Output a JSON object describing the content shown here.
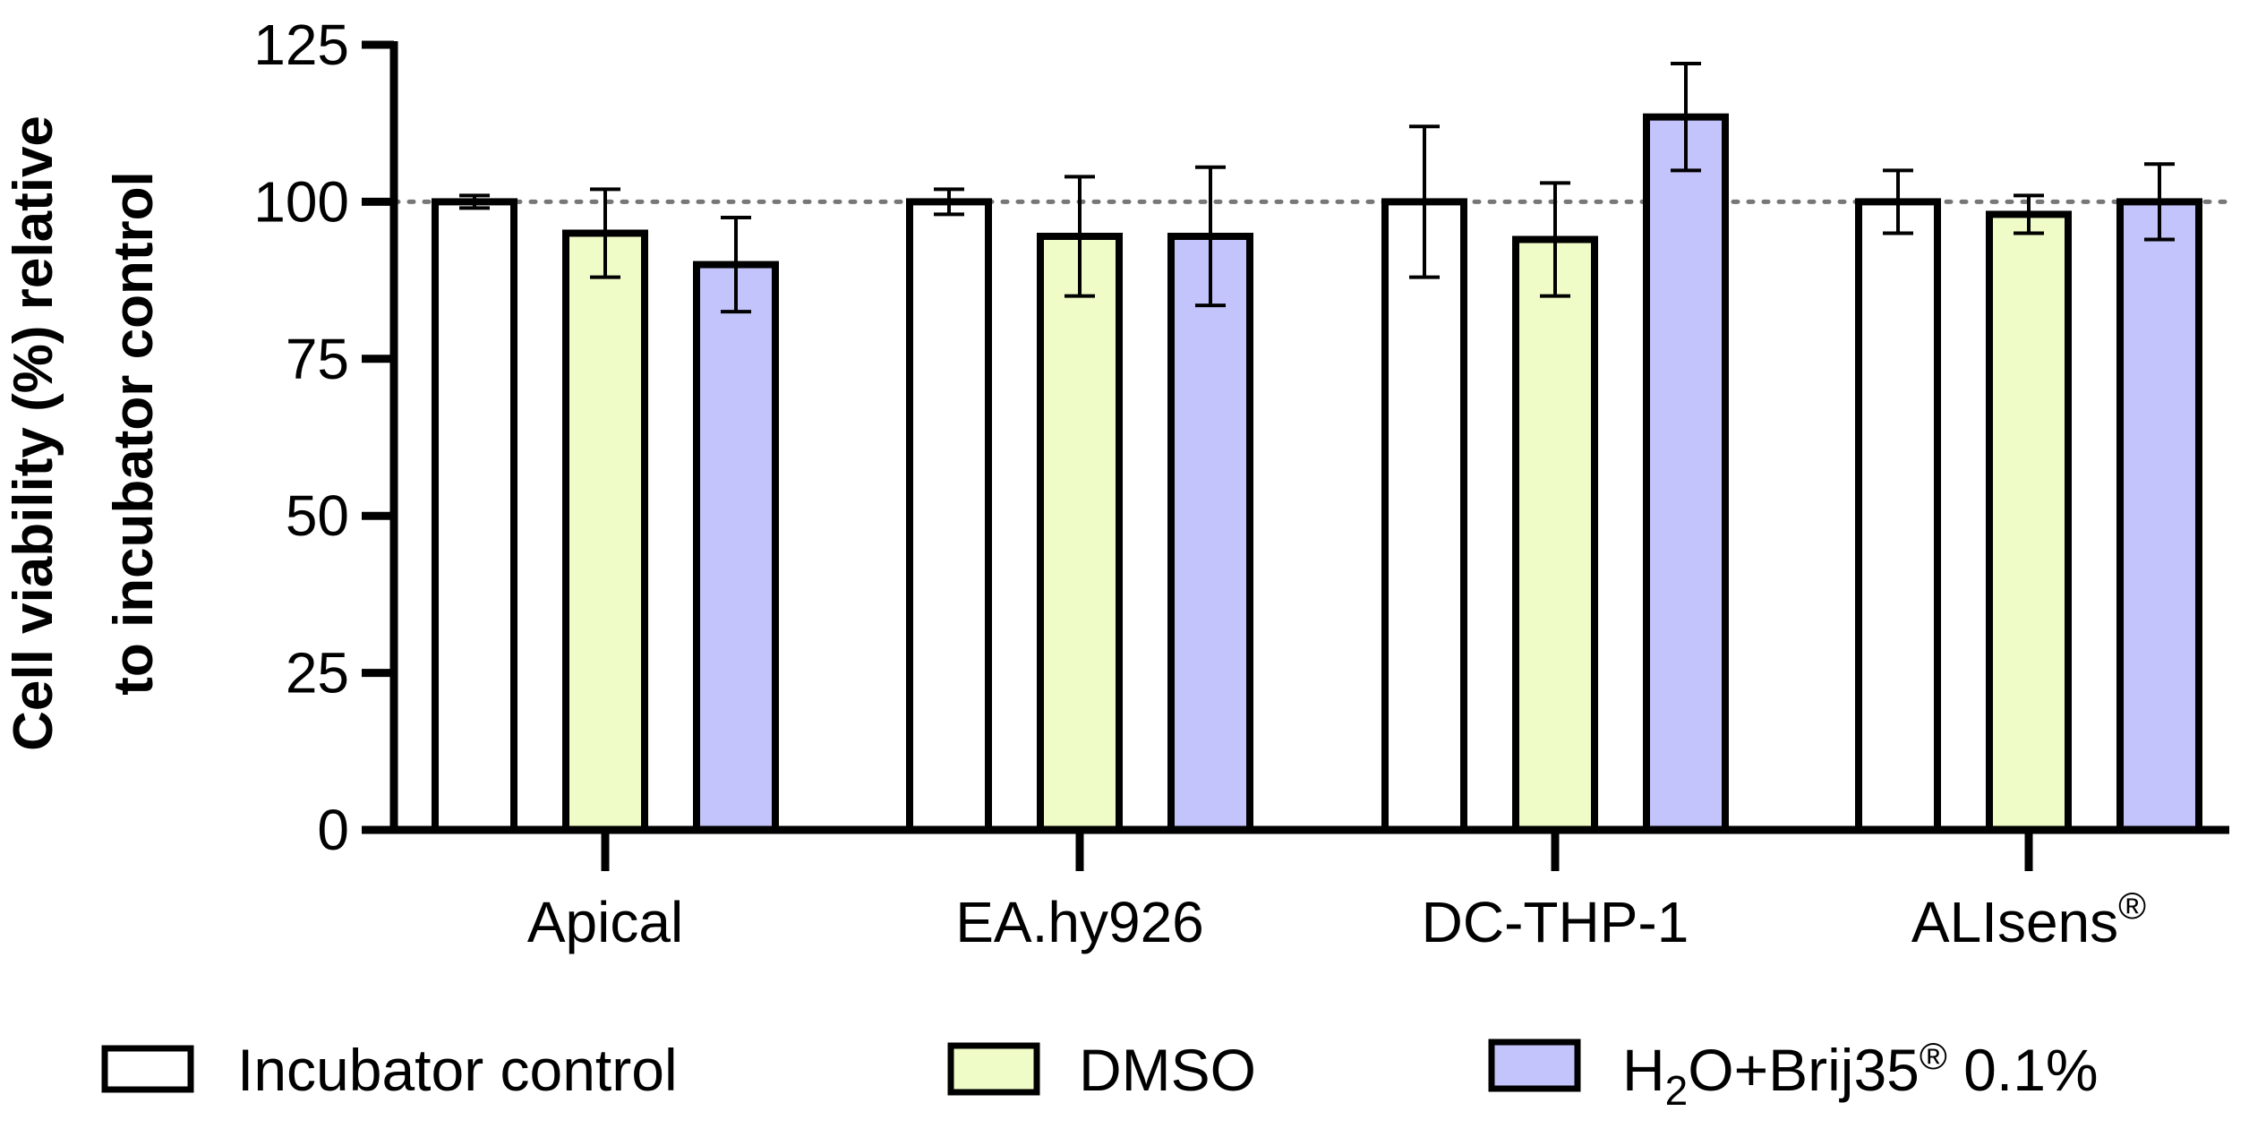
{
  "chart_data": {
    "type": "bar",
    "categories": [
      "Apical",
      "EA.hy926",
      "DC-THP-1",
      "ALIsens"
    ],
    "category_superscripts": [
      "",
      "",
      "",
      "®"
    ],
    "series": [
      {
        "name": "Incubator control",
        "color": "#ffffff",
        "values": [
          100,
          100,
          100,
          100
        ],
        "errors": [
          1,
          2,
          12,
          5
        ]
      },
      {
        "name": "DMSO",
        "color": "#f0fcc8",
        "values": [
          95,
          94.5,
          94,
          98
        ],
        "errors": [
          7,
          9.5,
          9,
          3
        ]
      },
      {
        "name": "H2O+Brij35® 0.1%",
        "color": "#c4c4fc",
        "values": [
          90,
          94.5,
          113.5,
          100
        ],
        "errors": [
          7.5,
          11,
          8.5,
          6
        ]
      }
    ],
    "legend_labels": {
      "s0": "Incubator control",
      "s1": "DMSO",
      "s2_h": "H",
      "s2_sub": "2",
      "s2_rest": "O+Brij35",
      "s2_reg": "®",
      "s2_tail": " 0.1%"
    },
    "ylabel_line1": "Cell viability (%) relative",
    "ylabel_line2": "to incubator control",
    "xlabel": "",
    "ylim": [
      0,
      125
    ],
    "yticks": [
      0,
      25,
      50,
      75,
      100,
      125
    ],
    "reference_line": 100,
    "legend_position": "bottom"
  }
}
